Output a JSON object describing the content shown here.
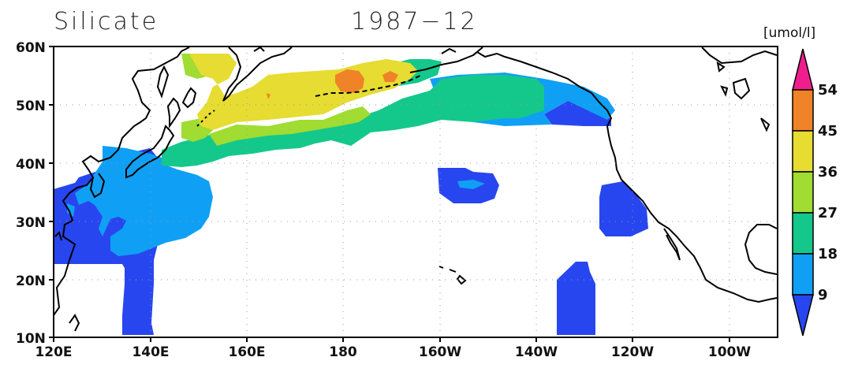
{
  "title": {
    "variable": "Silicate",
    "date": "1987−12"
  },
  "colorbar": {
    "unit": "[umol/l]",
    "levels": [
      "54",
      "45",
      "36",
      "27",
      "18",
      "9"
    ],
    "colors": {
      "lt9": "#2846f0",
      "9to18": "#0fa0f5",
      "18to27": "#14c88c",
      "27to36": "#a0dc32",
      "36to45": "#e6dc32",
      "45to54": "#f08228",
      "gt54": "#f01e8c"
    }
  },
  "axes": {
    "lat_labels": [
      "60N",
      "50N",
      "40N",
      "30N",
      "20N",
      "10N"
    ],
    "lon_labels": [
      "120E",
      "140E",
      "160E",
      "180",
      "160W",
      "140W",
      "120W",
      "100W"
    ],
    "lon_range": [
      120,
      270
    ],
    "lat_range": [
      10,
      60
    ]
  },
  "map": {
    "region": "North Pacific",
    "land_color": "#ffffff",
    "coastline_color": "#000000",
    "gridlines": "dotted"
  }
}
